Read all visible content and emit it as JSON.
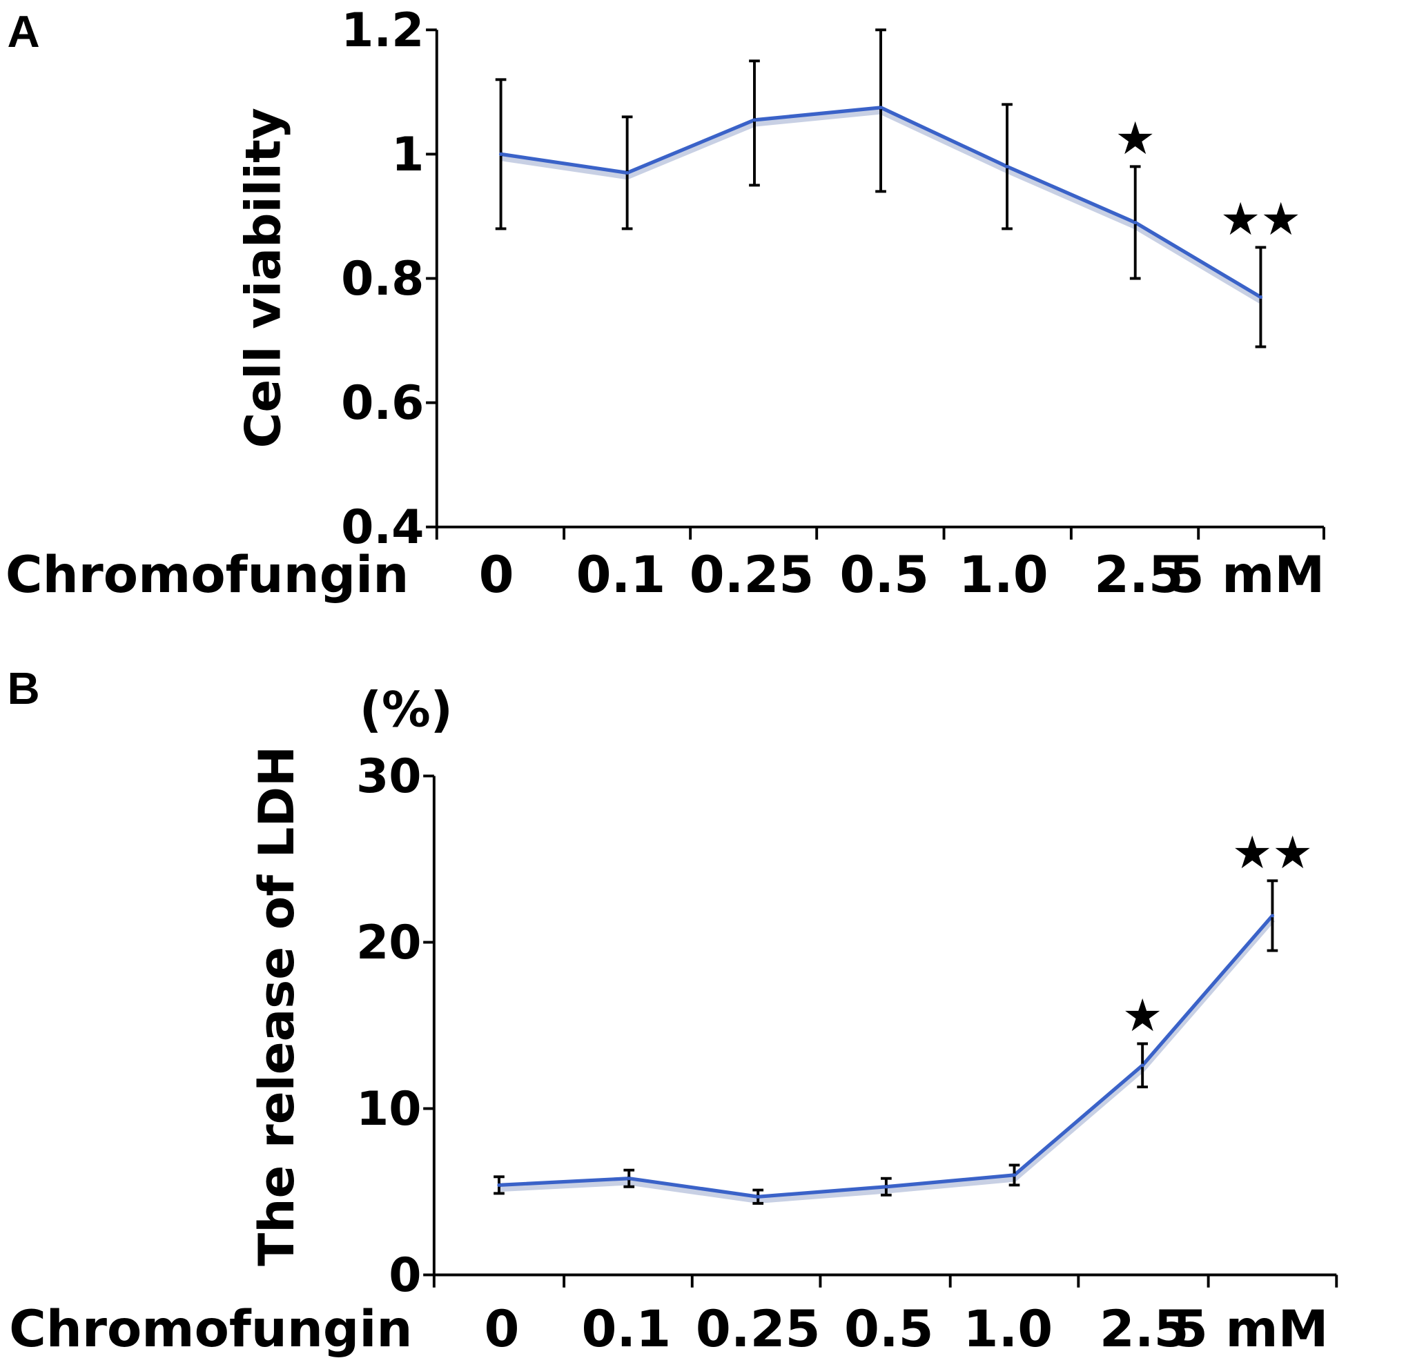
{
  "chart_data": [
    {
      "panel": "A",
      "type": "line",
      "categories": [
        "0",
        "0.1",
        "0.25",
        "0.5",
        "1.0",
        "2.5",
        "5 mM"
      ],
      "xlabel": "Chromofungin",
      "ylabel": "Cell viability",
      "ylim": [
        0.4,
        1.2
      ],
      "yticks": [
        "0.4",
        "0.6",
        "0.8",
        "1",
        "1.2"
      ],
      "ytick_values": [
        0.4,
        0.6,
        0.8,
        1.0,
        1.2
      ],
      "series": [
        {
          "name": "Cell viability",
          "values": [
            1.0,
            0.97,
            1.055,
            1.075,
            0.98,
            0.89,
            0.77
          ],
          "err_low": [
            0.88,
            0.88,
            0.95,
            0.94,
            0.88,
            0.8,
            0.69
          ],
          "err_high": [
            1.12,
            1.06,
            1.15,
            1.2,
            1.08,
            0.98,
            0.85
          ]
        }
      ],
      "annotations": [
        {
          "category": "2.5",
          "text": "★"
        },
        {
          "category": "5 mM",
          "text": "★★"
        }
      ],
      "color": "#3a62c8"
    },
    {
      "panel": "B",
      "type": "line",
      "categories": [
        "0",
        "0.1",
        "0.25",
        "0.5",
        "1.0",
        "2.5",
        "5 mM"
      ],
      "xlabel": "Chromofungin",
      "ylabel": "The release of LDH",
      "yunit": "(%)",
      "ylim": [
        0,
        30
      ],
      "yticks": [
        "0",
        "10",
        "20",
        "30"
      ],
      "ytick_values": [
        0,
        10,
        20,
        30
      ],
      "series": [
        {
          "name": "LDH release",
          "values": [
            5.4,
            5.8,
            4.7,
            5.3,
            6.0,
            12.6,
            21.6
          ],
          "err_low": [
            4.9,
            5.3,
            4.3,
            4.8,
            5.4,
            11.3,
            19.5
          ],
          "err_high": [
            5.9,
            6.3,
            5.1,
            5.8,
            6.6,
            13.9,
            23.7
          ]
        }
      ],
      "annotations": [
        {
          "category": "2.5",
          "text": "★"
        },
        {
          "category": "5 mM",
          "text": "★★"
        }
      ],
      "color": "#3a62c8"
    }
  ]
}
